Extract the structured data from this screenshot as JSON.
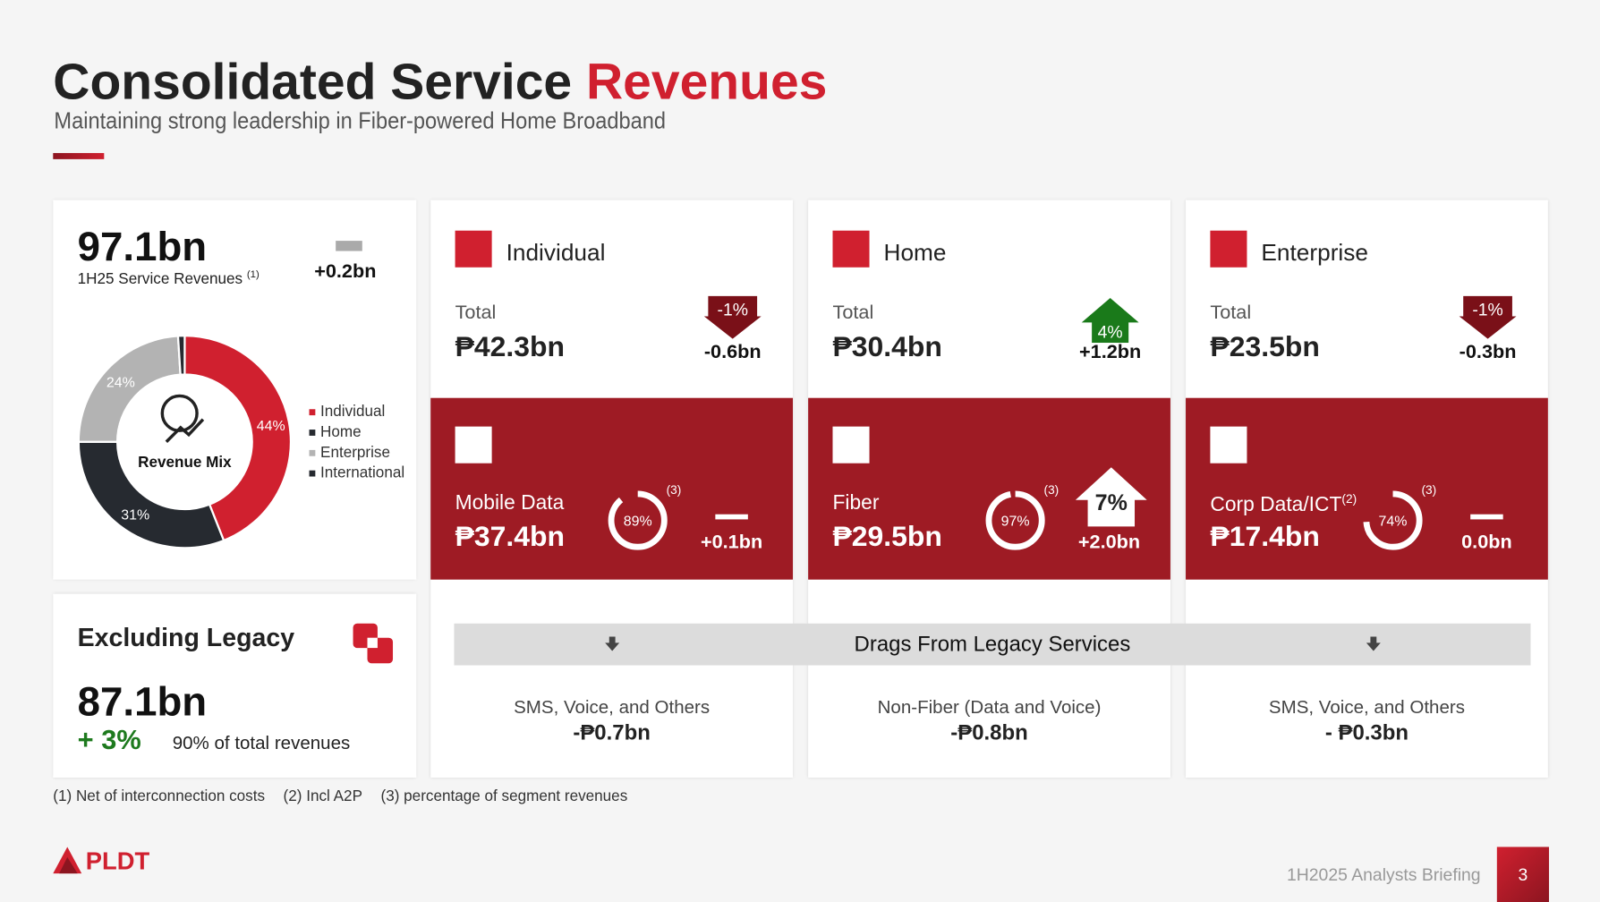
{
  "header": {
    "title_main": "Consolidated Service",
    "title_accent": "Revenues",
    "subtitle": "Maintaining strong leadership in Fiber-powered Home Broadband"
  },
  "summary": {
    "value": "97.1bn",
    "label": "1H25 Service Revenues",
    "note": "(1)",
    "change": "+0.2bn"
  },
  "revenue_mix": {
    "type": "pie",
    "title": "Revenue Mix",
    "categories": [
      "Individual",
      "Home",
      "Enterprise",
      "International"
    ],
    "values": [
      44,
      31,
      24,
      1
    ],
    "value_labels": [
      "44%",
      "31%",
      "24%",
      null
    ],
    "colors": [
      "#d0202f",
      "#262a30",
      "#b3b3b3",
      "#262a30"
    ]
  },
  "legacy": {
    "title": "Excluding Legacy",
    "value": "87.1bn",
    "growth": "+ 3%",
    "share": "90% of total revenues"
  },
  "segments": [
    {
      "name": "Individual",
      "total_label": "Total",
      "total": "₱42.3bn",
      "arrow": "down",
      "change_pct": "-1%",
      "change": "-0.6bn",
      "product": "Mobile Data",
      "product_value": "₱37.4bn",
      "share": 89,
      "share_label": "89%",
      "share_note": "(3)",
      "product_change": "+0.1bn",
      "drag_label": "SMS, Voice, and Others",
      "drag_value": "-₱0.7bn"
    },
    {
      "name": "Home",
      "total_label": "Total",
      "total": "₱30.4bn",
      "arrow": "up",
      "change_pct": "4%",
      "change": "+1.2bn",
      "product": "Fiber",
      "product_value": "₱29.5bn",
      "share": 97,
      "share_label": "97%",
      "share_note": "(3)",
      "product_change_pct": "7%",
      "product_change": "+2.0bn",
      "drag_label": "Non-Fiber (Data and Voice)",
      "drag_value": "-₱0.8bn"
    },
    {
      "name": "Enterprise",
      "total_label": "Total",
      "total": "₱23.5bn",
      "arrow": "down",
      "change_pct": "-1%",
      "change": "-0.3bn",
      "product": "Corp Data/ICT",
      "product_note": "(2)",
      "product_value": "₱17.4bn",
      "share": 74,
      "share_label": "74%",
      "share_note": "(3)",
      "product_change": "0.0bn",
      "drag_label": "SMS, Voice, and Others",
      "drag_value": "- ₱0.3bn"
    }
  ],
  "drags_title": "Drags From Legacy Services",
  "footnotes": [
    "(1) Net of interconnection costs",
    "(2) Incl A2P",
    "(3) percentage of segment revenues"
  ],
  "footer": {
    "logo": "PLDT",
    "briefing": "1H2025 Analysts Briefing",
    "page": "3"
  }
}
